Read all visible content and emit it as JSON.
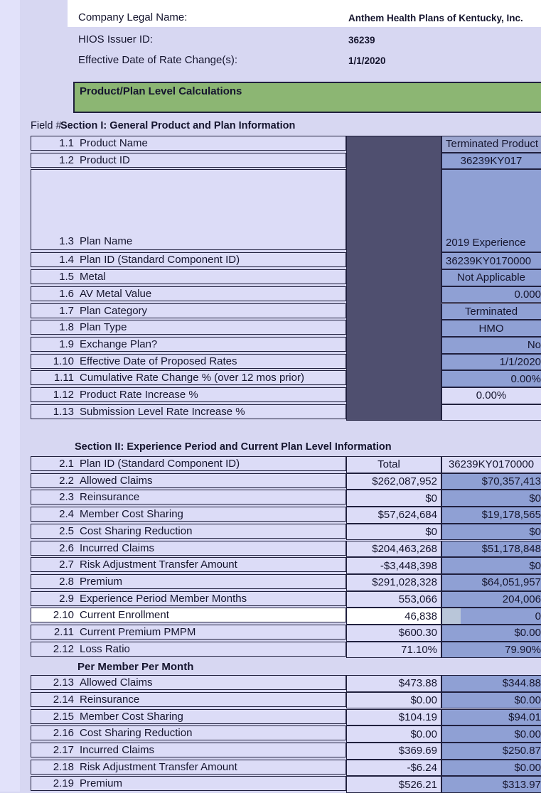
{
  "colors": {
    "page_bg": "#d7d7f2",
    "left_strip": "#e2e2fa",
    "text_navy": "#15152e",
    "border_navy": "#20203e",
    "cell_blue": "#8fa0d4",
    "cell_blue_muted": "#9ca6d0",
    "lavender_cell": "#dcdcf7",
    "dark_column": "#4f4f6f",
    "banner_green": "#8cb673",
    "selection_strip": "#b9c6d9"
  },
  "header": {
    "company_label": "Company Legal Name:",
    "company_value": "Anthem Health Plans of Kentucky, Inc.",
    "hios_label": "HIOS Issuer ID:",
    "hios_value": "36239",
    "effective_label": "Effective Date of Rate Change(s):",
    "effective_value": "1/1/2020"
  },
  "banner": {
    "title": "Product/Plan Level Calculations"
  },
  "section1": {
    "field_header": "Field #",
    "title": "Section I: General Product and Plan Information",
    "rows": [
      {
        "num": "1.1",
        "label": "Product Name",
        "value": "Terminated Product",
        "align": "left",
        "bg": "blue_muted"
      },
      {
        "num": "1.2",
        "label": "Product ID",
        "value": "36239KY017",
        "align": "center",
        "bg": "blue"
      },
      {
        "num": "1.3",
        "label": "Plan Name",
        "value": "2019 Experience",
        "align": "left",
        "bg": "blue",
        "tall": true
      },
      {
        "num": "1.4",
        "label": "Plan ID (Standard Component ID)",
        "value": "36239KY0170000",
        "align": "left",
        "bg": "blue"
      },
      {
        "num": "1.5",
        "label": "Metal",
        "value": "Not Applicable",
        "align": "center",
        "bg": "blue"
      },
      {
        "num": "1.6",
        "label": "AV Metal Value",
        "value": "0.000",
        "align": "right",
        "bg": "blue"
      },
      {
        "num": "1.7",
        "label": "Plan Category",
        "value": "Terminated",
        "align": "center",
        "bg": "blue"
      },
      {
        "num": "1.8",
        "label": "Plan Type",
        "value": "HMO",
        "align": "center",
        "bg": "blue"
      },
      {
        "num": "1.9",
        "label": "Exchange Plan?",
        "value": "No",
        "align": "right",
        "bg": "blue"
      },
      {
        "num": "1.10",
        "label": "Effective Date of Proposed Rates",
        "value": "1/1/2020",
        "align": "right",
        "bg": "blue"
      },
      {
        "num": "1.11",
        "label": "Cumulative Rate Change % (over 12 mos prior)",
        "value": "0.00%",
        "align": "right",
        "bg": "blue"
      },
      {
        "num": "1.12",
        "label": "Product Rate Increase %",
        "value": "0.00%",
        "align": "center",
        "bg": "lavender"
      },
      {
        "num": "1.13",
        "label": "Submission Level Rate Increase %",
        "value": "",
        "align": "center",
        "bg": "lavender"
      }
    ]
  },
  "section2": {
    "title": "Section II: Experience Period and Current Plan Level Information",
    "rows": [
      {
        "num": "2.1",
        "label": "Plan ID (Standard Component ID)",
        "total": "Total",
        "value": "36239KY0170000",
        "total_align": "center",
        "value_align": "center",
        "value_bg": "lavender"
      },
      {
        "num": "2.2",
        "label": "Allowed Claims",
        "total": "$262,087,952",
        "value": "$70,357,413"
      },
      {
        "num": "2.3",
        "label": "Reinsurance",
        "total": "$0",
        "value": "$0"
      },
      {
        "num": "2.4",
        "label": "Member Cost Sharing",
        "total": "$57,624,684",
        "value": "$19,178,565"
      },
      {
        "num": "2.5",
        "label": "Cost Sharing Reduction",
        "total": "$0",
        "value": "$0"
      },
      {
        "num": "2.6",
        "label": "Incurred Claims",
        "total": "$204,463,268",
        "value": "$51,178,848"
      },
      {
        "num": "2.7",
        "label": "Risk Adjustment Transfer Amount",
        "total": "-$3,448,398",
        "value": "$0"
      },
      {
        "num": "2.8",
        "label": "Premium",
        "total": "$291,028,328",
        "value": "$64,051,957"
      },
      {
        "num": "2.9",
        "label": "Experience Period Member Months",
        "total": "553,066",
        "value": "204,006"
      },
      {
        "num": "2.10",
        "label": "Current Enrollment",
        "total": "46,838",
        "value": "0",
        "highlight": true
      },
      {
        "num": "2.11",
        "label": "Current Premium PMPM",
        "total": "$600.30",
        "value": "$0.00"
      },
      {
        "num": "2.12",
        "label": "Loss Ratio",
        "total": "71.10%",
        "value": "79.90%"
      },
      {
        "type": "subheader",
        "label": "Per Member Per Month"
      },
      {
        "num": "2.13",
        "label": "Allowed Claims",
        "total": "$473.88",
        "value": "$344.88"
      },
      {
        "num": "2.14",
        "label": "Reinsurance",
        "total": "$0.00",
        "value": "$0.00"
      },
      {
        "num": "2.15",
        "label": "Member Cost Sharing",
        "total": "$104.19",
        "value": "$94.01"
      },
      {
        "num": "2.16",
        "label": "Cost Sharing Reduction",
        "total": "$0.00",
        "value": "$0.00"
      },
      {
        "num": "2.17",
        "label": "Incurred Claims",
        "total": "$369.69",
        "value": "$250.87"
      },
      {
        "num": "2.18",
        "label": "Risk Adjustment Transfer Amount",
        "total": "-$6.24",
        "value": "$0.00"
      },
      {
        "num": "2.19",
        "label": "Premium",
        "total": "$526.21",
        "value": "$313.97"
      }
    ]
  }
}
